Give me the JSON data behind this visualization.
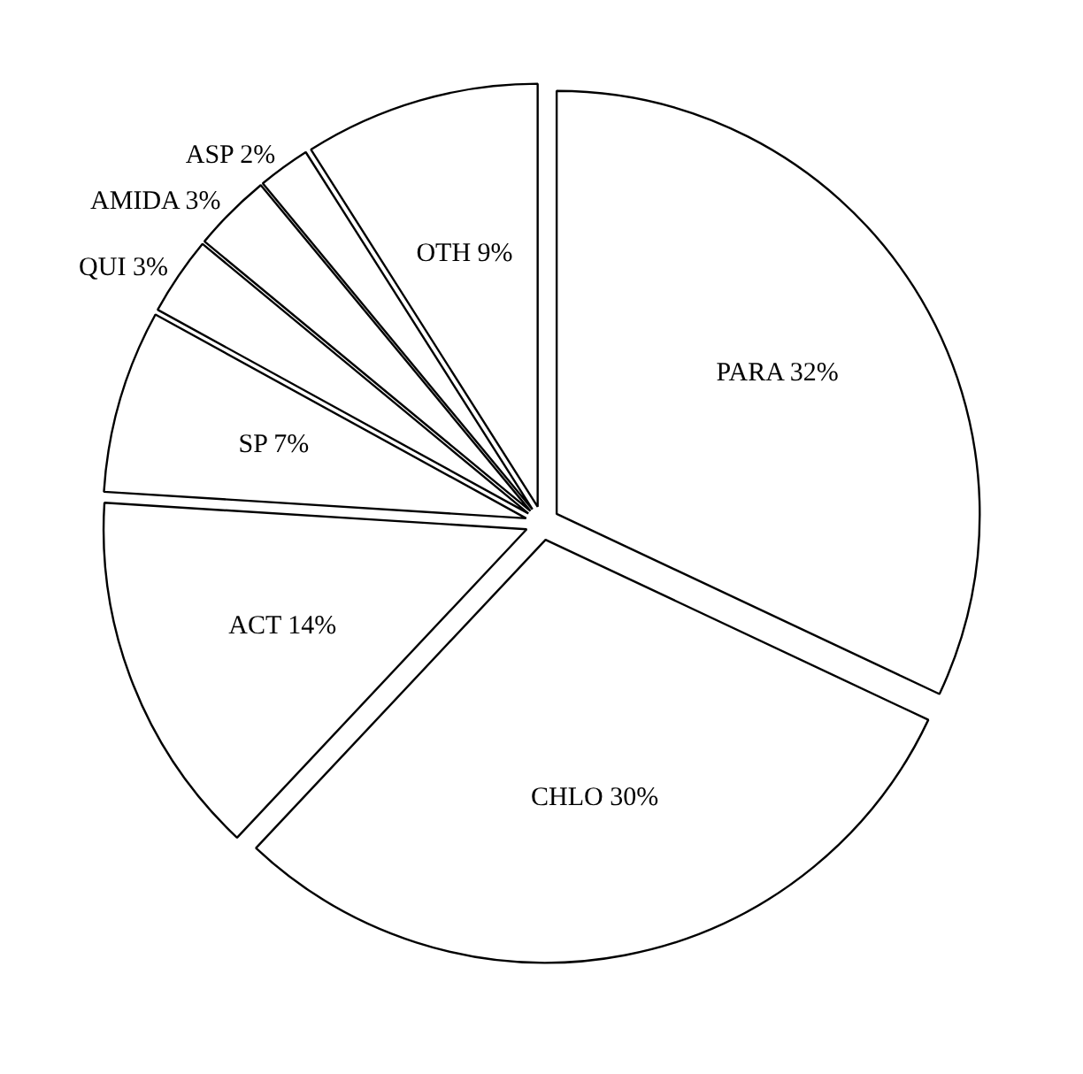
{
  "chart_data": {
    "type": "pie",
    "categories": [
      "PARA",
      "CHLO",
      "ACT",
      "SP",
      "QUI",
      "AMIDA",
      "ASP",
      "OTH"
    ],
    "values": [
      32,
      30,
      14,
      7,
      3,
      3,
      2,
      9
    ],
    "value_labels": [
      "32%",
      "30%",
      "14%",
      "7%",
      "3%",
      "3%",
      "2%",
      "9%"
    ],
    "colors": [
      "#ffffff",
      "#ffffff",
      "#ffffff",
      "#ffffff",
      "#ffffff",
      "#ffffff",
      "#ffffff",
      "#ffffff"
    ]
  }
}
